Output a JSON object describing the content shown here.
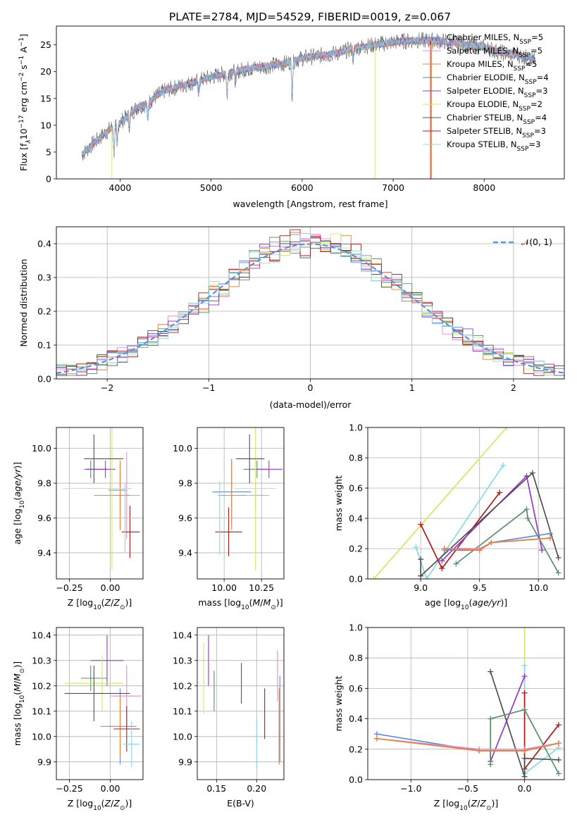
{
  "figure": {
    "title": "PLATE=2784, MJD=54529, FIBERID=0019, z=0.067"
  },
  "legend_colors": {
    "Chabrier MILES": "#5a8fe0",
    "Salpeter MILES": "#ee88c8",
    "Kroupa MILES": "#e8803a",
    "Chabrier ELODIE": "#5a8f68",
    "Salpeter ELODIE": "#9438c8",
    "Kroupa ELODIE": "#d0ea60",
    "Chabrier STELIB": "#505050",
    "Salpeter STELIB": "#b01818",
    "Kroupa STELIB": "#88d8e2"
  },
  "chart_data": [
    {
      "id": "spectrum",
      "type": "line",
      "xlabel": "wavelength [Angstrom, rest frame]",
      "ylabel_main": "Flux [f",
      "ylabel_rest": "10",
      "ylabel_units": " erg cm",
      "xlim": [
        3300,
        8880
      ],
      "ylim": [
        0,
        28.5
      ],
      "xticks": [
        4000,
        5000,
        6000,
        7000,
        8000
      ],
      "yticks": [
        0,
        5,
        10,
        15,
        20,
        25
      ],
      "grid": false,
      "legend": {
        "placement": "top-right",
        "entries": [
          {
            "label": "Chabrier MILES, N",
            "n": "5"
          },
          {
            "label": "Salpeter MILES, N",
            "n": "5"
          },
          {
            "label": "Kroupa MILES, N",
            "n": "5"
          },
          {
            "label": "Chabrier ELODIE, N",
            "n": "4"
          },
          {
            "label": "Salpeter ELODIE, N",
            "n": "3"
          },
          {
            "label": "Kroupa ELODIE, N",
            "n": "2"
          },
          {
            "label": "Chabrier STELIB, N",
            "n": "4"
          },
          {
            "label": "Salpeter STELIB, N",
            "n": "3"
          },
          {
            "label": "Kroupa STELIB, N",
            "n": "3"
          }
        ]
      },
      "continuum": {
        "x": [
          3580,
          3700,
          3800,
          3900,
          4000,
          4100,
          4200,
          4300,
          4400,
          4500,
          4700,
          4900,
          5000,
          5200,
          5400,
          5600,
          5800,
          6000,
          6200,
          6400,
          6600,
          6800,
          7000,
          7200,
          7400,
          7600,
          7800,
          8000,
          8200,
          8400,
          8560
        ],
        "y": [
          4.5,
          6.5,
          8.0,
          9.5,
          10.5,
          12.0,
          13.5,
          14.0,
          15.5,
          16.5,
          17.5,
          18.5,
          19.0,
          19.8,
          20.5,
          21.0,
          21.5,
          22.5,
          23.0,
          23.5,
          24.5,
          25.0,
          25.5,
          25.8,
          25.8,
          25.6,
          25.0,
          24.5,
          23.5,
          23.0,
          22.0
        ]
      }
    },
    {
      "id": "residuals",
      "type": "histogram",
      "xlabel": "(data-model)/error",
      "ylabel": "Normed distribution",
      "xlim": [
        -2.5,
        2.5
      ],
      "ylim": [
        0,
        0.45
      ],
      "xticks": [
        -2,
        -1,
        0,
        1,
        2
      ],
      "yticks": [
        0.0,
        0.1,
        0.2,
        0.3,
        0.4
      ],
      "grid": true,
      "bin_width": 0.1,
      "reference_curve": "N(0,1)",
      "legend": {
        "placement": "top-right",
        "entries": [
          "(0, 1)"
        ]
      }
    },
    {
      "id": "age-vs-Z",
      "type": "scatter",
      "xlabel": "Z [log",
      "ylabel": "age  [log",
      "xlim": [
        -0.33,
        0.2
      ],
      "ylim": [
        9.25,
        10.12
      ],
      "xticks": [
        -0.25,
        0.0,
        0.25
      ],
      "yticks": [
        9.4,
        9.6,
        9.8,
        10.0
      ],
      "grid": true,
      "points": [
        {
          "model": "Chabrier MILES",
          "x": 0.06,
          "y": 9.76,
          "xerr": [
            0.07,
            0.04
          ],
          "yerr": 0.1
        },
        {
          "model": "Salpeter MILES",
          "x": 0.1,
          "y": 9.73,
          "xerr": [
            0.1,
            0.08
          ],
          "yerr": 0.25
        },
        {
          "model": "Kroupa MILES",
          "x": 0.06,
          "y": 9.73,
          "xerr": [
            0.16,
            0.06
          ],
          "yerr": 0.2
        },
        {
          "model": "Chabrier ELODIE",
          "x": -0.12,
          "y": 9.88,
          "xerr": [
            0.04,
            0.1
          ],
          "yerr": 0.05
        },
        {
          "model": "Salpeter ELODIE",
          "x": -0.03,
          "y": 9.88,
          "xerr": [
            0.12,
            0.06
          ],
          "yerr": 0.05
        },
        {
          "model": "Kroupa ELODIE",
          "x": 0.01,
          "y": 9.77,
          "xerr": [
            0.3,
            0.12
          ],
          "yerr": 0.47
        },
        {
          "model": "Chabrier STELIB",
          "x": -0.1,
          "y": 9.94,
          "xerr": [
            0.06,
            0.18
          ],
          "yerr": 0.14
        },
        {
          "model": "Salpeter STELIB",
          "x": 0.12,
          "y": 9.52,
          "xerr": [
            0.05,
            0.06
          ],
          "yerr": 0.15
        },
        {
          "model": "Kroupa STELIB",
          "x": 0.09,
          "y": 9.6,
          "xerr": [
            0.07,
            0.12
          ],
          "yerr": 0.2
        }
      ]
    },
    {
      "id": "age-vs-mass",
      "type": "scatter",
      "xlabel": "mass [log",
      "xlim": [
        9.82,
        10.4
      ],
      "ylim": [
        9.25,
        10.12
      ],
      "xticks": [
        10.0,
        10.25
      ],
      "yticks": [
        9.4,
        9.6,
        9.8,
        10.0
      ],
      "grid": true,
      "points": [
        {
          "model": "Chabrier MILES",
          "x": 10.05,
          "y": 9.75,
          "xerr": [
            0.13,
            0.13
          ],
          "yerr": 0.19
        },
        {
          "model": "Salpeter MILES",
          "x": 10.21,
          "y": 9.73,
          "xerr": [
            0.09,
            0.09
          ],
          "yerr": 0.08
        },
        {
          "model": "Kroupa MILES",
          "x": 10.05,
          "y": 9.73,
          "xerr": [
            0.09,
            0.09
          ],
          "yerr": 0.2
        },
        {
          "model": "Chabrier ELODIE",
          "x": 10.22,
          "y": 9.88,
          "xerr": [
            0.09,
            0.07
          ],
          "yerr": 0.05
        },
        {
          "model": "Salpeter ELODIE",
          "x": 10.3,
          "y": 9.88,
          "xerr": [
            0.08,
            0.09
          ],
          "yerr": 0.05
        },
        {
          "model": "Kroupa ELODIE",
          "x": 10.21,
          "y": 9.77,
          "xerr": [
            0.14,
            0.14
          ],
          "yerr": 0.47
        },
        {
          "model": "Chabrier STELIB",
          "x": 10.17,
          "y": 9.94,
          "xerr": [
            0.09,
            0.1
          ],
          "yerr": 0.14
        },
        {
          "model": "Salpeter STELIB",
          "x": 10.03,
          "y": 9.52,
          "xerr": [
            0.09,
            0.09
          ],
          "yerr": 0.14
        },
        {
          "model": "Kroupa STELIB",
          "x": 9.97,
          "y": 9.6,
          "xerr": [
            0.1,
            0.1
          ],
          "yerr": 0.21
        }
      ]
    },
    {
      "id": "weight-vs-age",
      "type": "line",
      "xlabel": "age  [log",
      "ylabel": "mass weight",
      "xlim": [
        8.55,
        10.22
      ],
      "ylim": [
        0,
        1.0
      ],
      "xticks": [
        9.0,
        9.5,
        10.0
      ],
      "yticks": [
        0.0,
        0.2,
        0.4,
        0.6,
        0.8,
        1.0
      ],
      "grid": true,
      "series": [
        {
          "model": "Kroupa ELODIE",
          "x": [
            8.6,
            9.73
          ],
          "y": [
            0.0,
            1.0
          ]
        },
        {
          "model": "Kroupa STELIB",
          "x": [
            8.96,
            9.05,
            9.7
          ],
          "y": [
            0.21,
            0.0,
            0.75
          ]
        },
        {
          "model": "Salpeter STELIB",
          "x": [
            9.0,
            9.18,
            9.67
          ],
          "y": [
            0.36,
            0.07,
            0.57
          ]
        },
        {
          "model": "Salpeter ELODIE",
          "x": [
            9.18,
            9.9,
            10.03
          ],
          "y": [
            0.12,
            0.68,
            0.19
          ]
        },
        {
          "model": "Chabrier STELIB",
          "x": [
            9.0,
            9.0,
            9.95,
            10.17
          ],
          "y": [
            0.13,
            0.02,
            0.7,
            0.14
          ]
        },
        {
          "model": "Chabrier ELODIE",
          "x": [
            9.3,
            9.9,
            9.91,
            10.17
          ],
          "y": [
            0.1,
            0.46,
            0.4,
            0.04
          ]
        },
        {
          "model": "Chabrier MILES",
          "x": [
            9.2,
            9.5,
            9.6,
            10.1
          ],
          "y": [
            0.19,
            0.19,
            0.24,
            0.3
          ]
        },
        {
          "model": "Salpeter MILES",
          "x": [
            9.2,
            9.5,
            9.6,
            10.1
          ],
          "y": [
            0.2,
            0.2,
            0.24,
            0.27
          ]
        },
        {
          "model": "Kroupa MILES",
          "x": [
            9.2,
            9.5,
            9.6,
            10.1
          ],
          "y": [
            0.2,
            0.19,
            0.24,
            0.27
          ]
        }
      ]
    },
    {
      "id": "mass-vs-Z",
      "type": "scatter",
      "xlabel": "Z [log",
      "ylabel": "mass [log",
      "xlim": [
        -0.33,
        0.2
      ],
      "ylim": [
        9.83,
        10.43
      ],
      "xticks": [
        -0.25,
        0.0,
        0.25
      ],
      "yticks": [
        9.9,
        10.0,
        10.1,
        10.2,
        10.3,
        10.4
      ],
      "grid": true,
      "points": [
        {
          "model": "Chabrier MILES",
          "x": 0.06,
          "y": 10.04,
          "xerr": [
            0.08,
            0.08
          ],
          "yerr": 0.15
        },
        {
          "model": "Salpeter MILES",
          "x": 0.1,
          "y": 10.16,
          "xerr": [
            0.1,
            0.09
          ],
          "yerr": 0.12
        },
        {
          "model": "Kroupa MILES",
          "x": 0.06,
          "y": 10.04,
          "xerr": [
            0.12,
            0.1
          ],
          "yerr": 0.12
        },
        {
          "model": "Chabrier ELODIE",
          "x": -0.12,
          "y": 10.23,
          "xerr": [
            0.06,
            0.1
          ],
          "yerr": 0.05
        },
        {
          "model": "Salpeter ELODIE",
          "x": -0.02,
          "y": 10.3,
          "xerr": [
            0.1,
            0.1
          ],
          "yerr": 0.1
        },
        {
          "model": "Kroupa ELODIE",
          "x": -0.05,
          "y": 10.21,
          "xerr": [
            0.23,
            0.13
          ],
          "yerr": 0.11
        },
        {
          "model": "Chabrier STELIB",
          "x": -0.1,
          "y": 10.17,
          "xerr": [
            0.18,
            0.22
          ],
          "yerr": 0.11
        },
        {
          "model": "Salpeter STELIB",
          "x": 0.1,
          "y": 10.03,
          "xerr": [
            0.08,
            0.08
          ],
          "yerr": 0.09
        },
        {
          "model": "Kroupa STELIB",
          "x": 0.13,
          "y": 9.97,
          "xerr": [
            0.05,
            0.05
          ],
          "yerr": 0.09
        }
      ]
    },
    {
      "id": "mass-vs-EBV",
      "type": "scatter",
      "xlabel": "E(B-V)",
      "xlim": [
        0.126,
        0.234
      ],
      "ylim": [
        9.83,
        10.43
      ],
      "xticks": [
        0.15,
        0.2
      ],
      "yticks": [
        9.9,
        10.0,
        10.1,
        10.2,
        10.3,
        10.4
      ],
      "grid": true,
      "points": [
        {
          "model": "Kroupa ELODIE",
          "x": 0.134,
          "y": 10.23,
          "yerr": 0.14
        },
        {
          "model": "Salpeter ELODIE",
          "x": 0.14,
          "y": 10.3,
          "yerr": 0.1
        },
        {
          "model": "Chabrier ELODIE",
          "x": 0.147,
          "y": 10.18,
          "yerr": 0.08
        },
        {
          "model": "Chabrier STELIB",
          "x": 0.181,
          "y": 10.21,
          "yerr": 0.08
        },
        {
          "model": "Kroupa STELIB",
          "x": 0.2,
          "y": 9.97,
          "yerr": 0.1
        },
        {
          "model": "Salpeter STELIB",
          "x": 0.21,
          "y": 10.09,
          "yerr": 0.1
        },
        {
          "model": "Salpeter MILES",
          "x": 0.226,
          "y": 10.24,
          "yerr": 0.1
        },
        {
          "model": "Kroupa MILES",
          "x": 0.228,
          "y": 10.04,
          "yerr": 0.15
        },
        {
          "model": "Chabrier MILES",
          "x": 0.229,
          "y": 10.07,
          "yerr": 0.17
        }
      ]
    },
    {
      "id": "weight-vs-Z",
      "type": "line",
      "xlabel": "Z [log",
      "ylabel": "mass weight",
      "xlim": [
        -1.38,
        0.35
      ],
      "ylim": [
        0,
        1.0
      ],
      "xticks": [
        -1.0,
        -0.5,
        0.0
      ],
      "yticks": [
        0.0,
        0.2,
        0.4,
        0.6,
        0.8,
        1.0
      ],
      "grid": true,
      "series": [
        {
          "model": "Kroupa ELODIE",
          "x": [
            0.0,
            0.0
          ],
          "y": [
            0.0,
            1.0
          ]
        },
        {
          "model": "Kroupa STELIB",
          "x": [
            0.0,
            0.0,
            0.0,
            0.3
          ],
          "y": [
            0.75,
            0.04,
            0.04,
            0.21
          ]
        },
        {
          "model": "Salpeter STELIB",
          "x": [
            0.0,
            0.0,
            0.3
          ],
          "y": [
            0.57,
            0.07,
            0.36
          ]
        },
        {
          "model": "Salpeter ELODIE",
          "x": [
            -0.3,
            -0.3,
            0.0
          ],
          "y": [
            0.19,
            0.12,
            0.68
          ]
        },
        {
          "model": "Chabrier STELIB",
          "x": [
            -0.3,
            0.0,
            0.0,
            0.3
          ],
          "y": [
            0.71,
            0.02,
            0.14,
            0.13
          ]
        },
        {
          "model": "Chabrier ELODIE",
          "x": [
            -0.3,
            -0.3,
            0.0,
            0.3
          ],
          "y": [
            0.1,
            0.4,
            0.46,
            0.04
          ]
        },
        {
          "model": "Chabrier MILES",
          "x": [
            -1.3,
            -0.4,
            0.0,
            0.3
          ],
          "y": [
            0.3,
            0.19,
            0.19,
            0.24
          ]
        },
        {
          "model": "Salpeter MILES",
          "x": [
            -1.3,
            -0.4,
            0.0,
            0.3
          ],
          "y": [
            0.27,
            0.2,
            0.2,
            0.24
          ]
        },
        {
          "model": "Kroupa MILES",
          "x": [
            -1.3,
            -0.4,
            0.0,
            0.3
          ],
          "y": [
            0.27,
            0.19,
            0.19,
            0.24
          ]
        }
      ]
    }
  ]
}
